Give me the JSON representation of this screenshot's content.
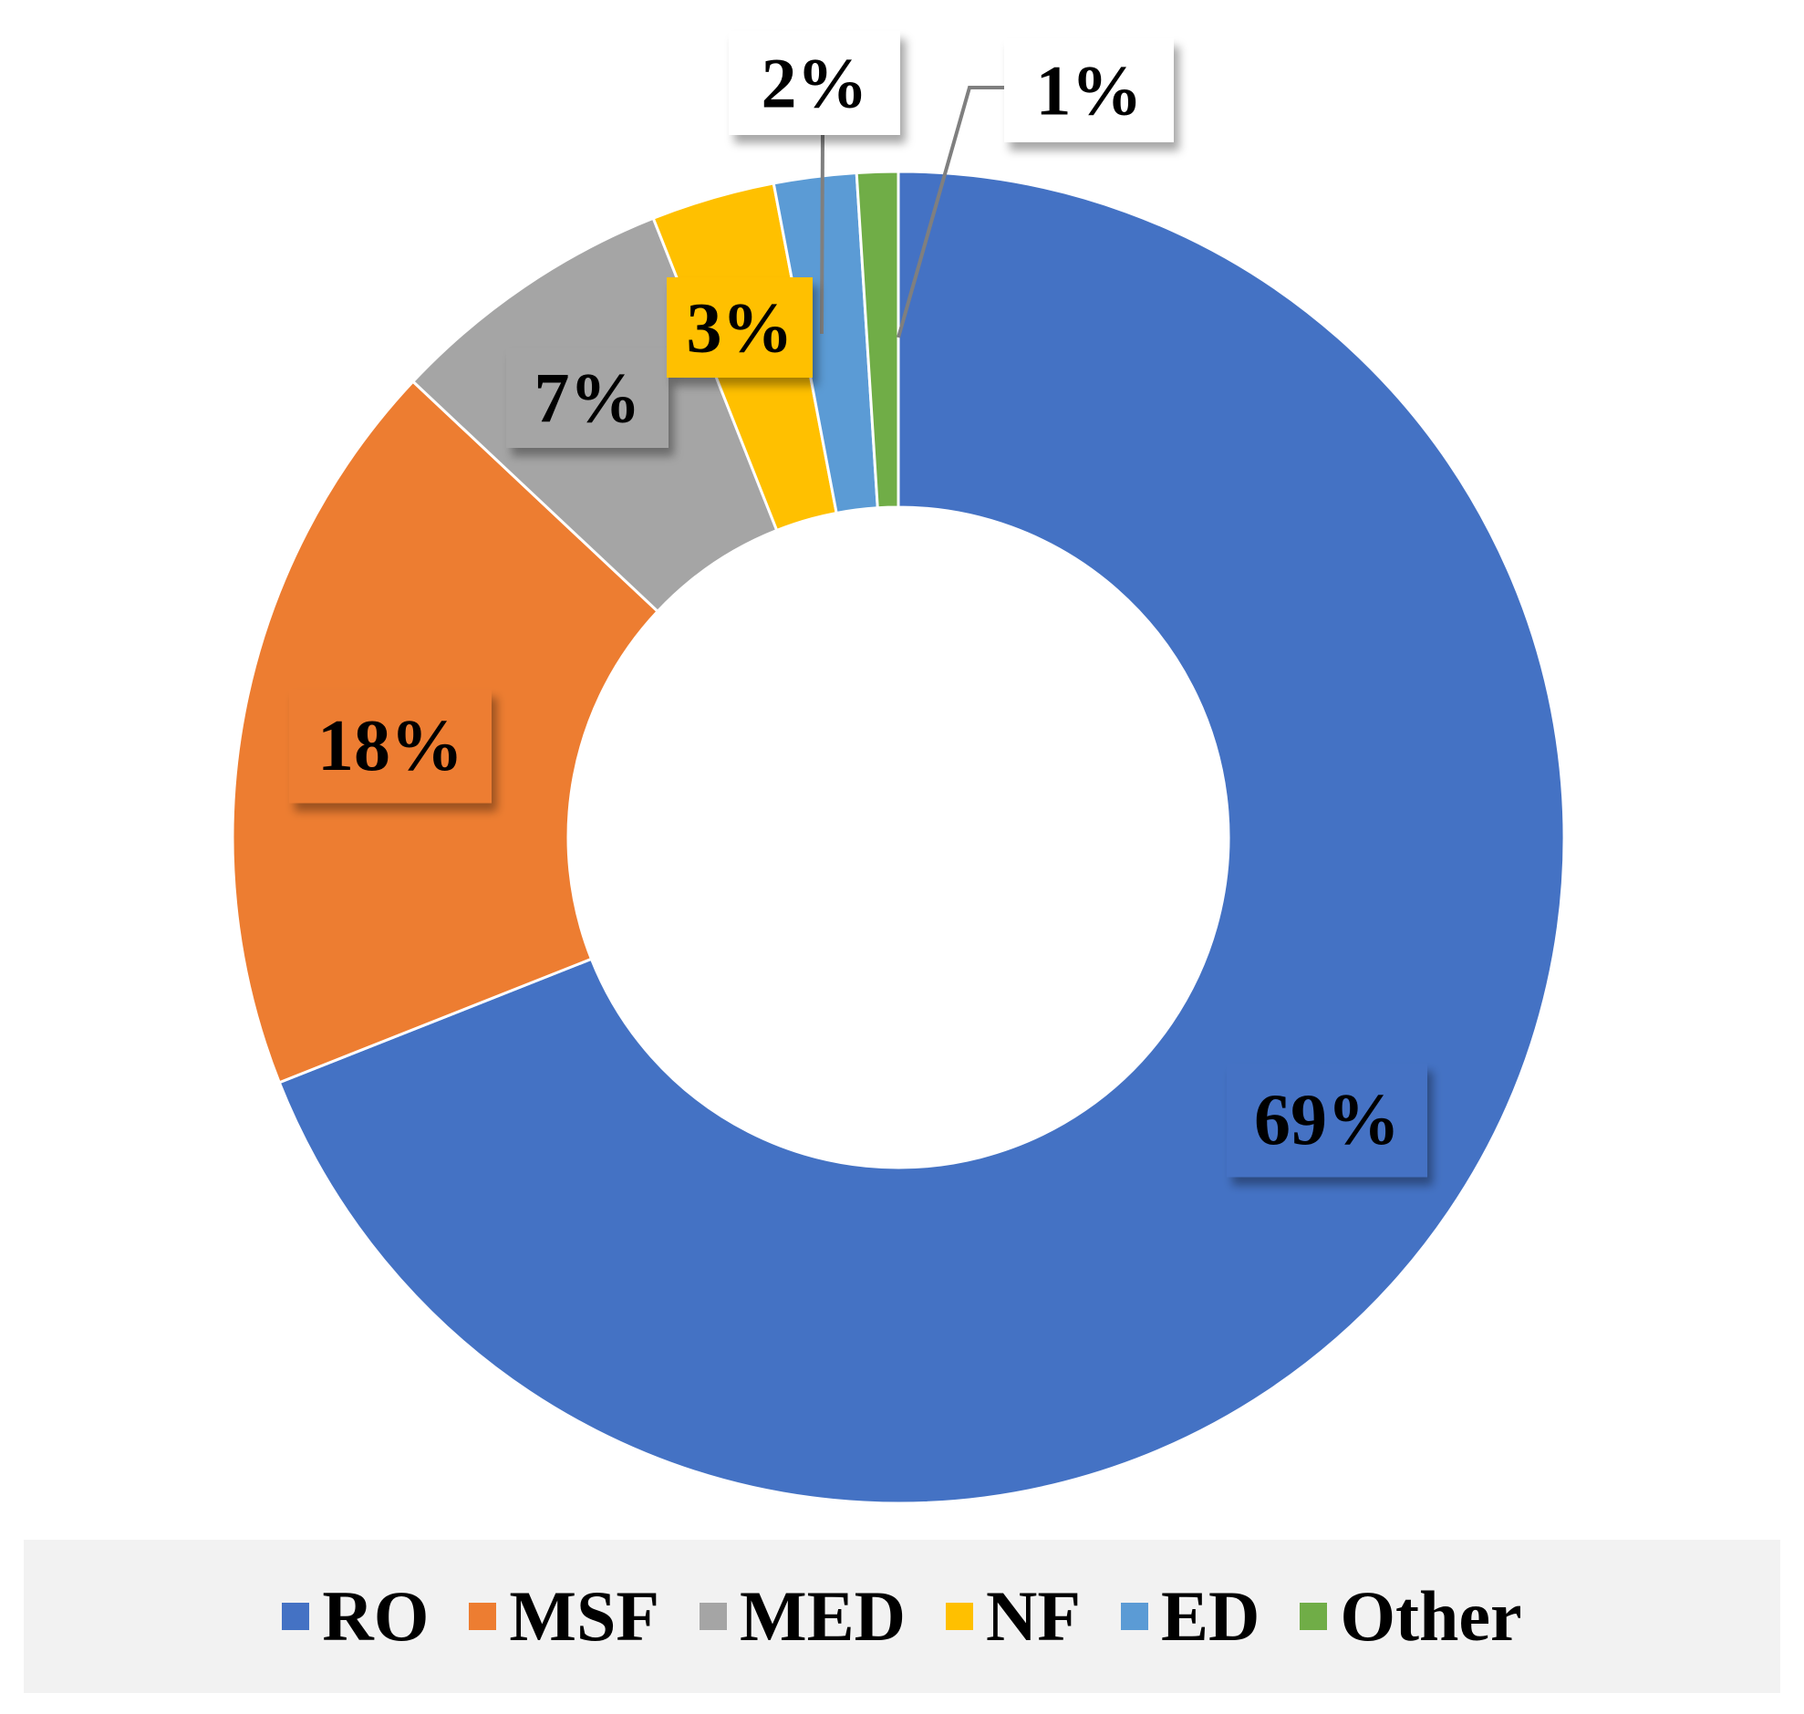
{
  "chart_data": {
    "type": "pie",
    "donut": true,
    "categories": [
      "RO",
      "MSF",
      "MED",
      "NF",
      "ED",
      "Other"
    ],
    "values": [
      69,
      18,
      7,
      3,
      2,
      1
    ],
    "data_labels": [
      "69%",
      "18%",
      "7%",
      "3%",
      "2%",
      "1%"
    ],
    "colors": [
      "#4472c4",
      "#ed7d31",
      "#a5a5a5",
      "#ffc000",
      "#5b9bd5",
      "#70ad47"
    ],
    "legend_position": "bottom"
  }
}
